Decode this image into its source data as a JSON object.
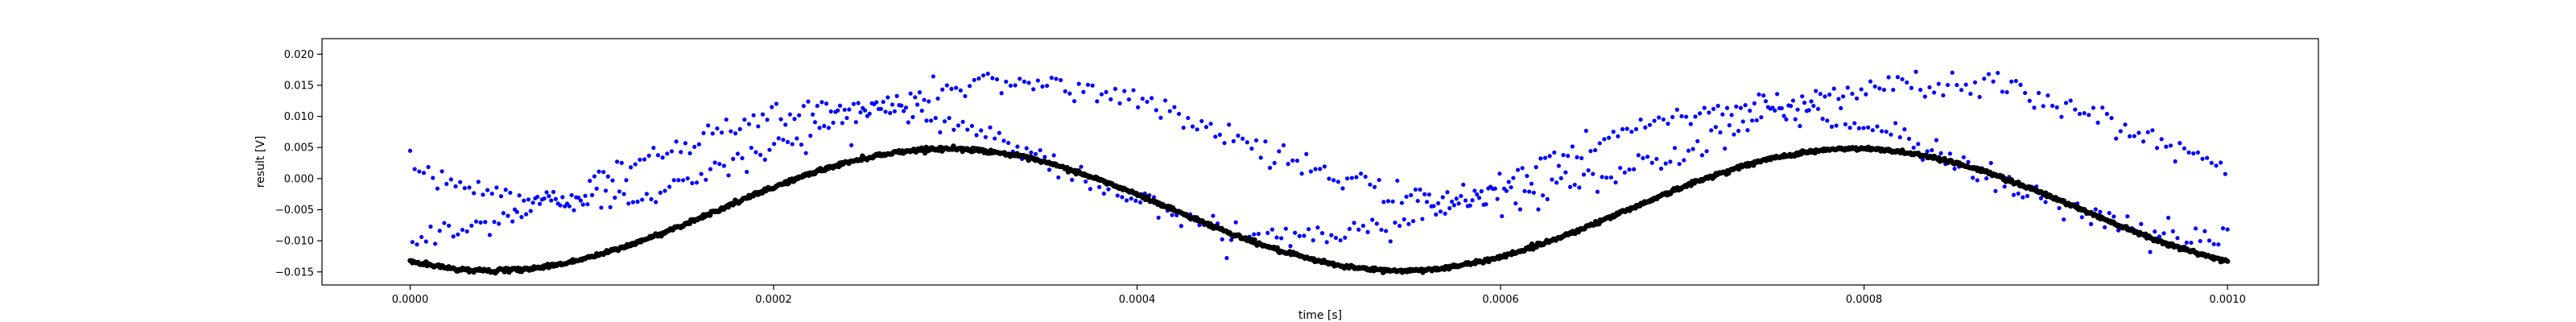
{
  "chart_data": {
    "type": "scatter",
    "title": "",
    "xlabel": "time [s]",
    "ylabel": "result [V]",
    "xlim": [
      -4.85e-05,
      0.00105
    ],
    "ylim": [
      -0.0171,
      0.0225
    ],
    "grid": false,
    "legend": "none",
    "x_ticks": [
      0.0,
      0.0002,
      0.0004,
      0.0006,
      0.0008,
      0.001
    ],
    "x_tick_labels": [
      "0.0000",
      "0.0002",
      "0.0004",
      "0.0006",
      "0.0008",
      "0.0010"
    ],
    "y_ticks": [
      -0.015,
      -0.01,
      -0.005,
      0.0,
      0.005,
      0.01,
      0.015,
      0.02
    ],
    "y_tick_labels": [
      "−0.015",
      "−0.010",
      "−0.005",
      "0.000",
      "0.005",
      "0.010",
      "0.015",
      "0.020"
    ],
    "series": [
      {
        "color": "#0000ff",
        "marker": "dot",
        "x_range": [
          0.0,
          0.001
        ],
        "n_points": 800,
        "model": "two interleaved noisy sinusoids, period 0.0005 s",
        "branch_a": {
          "offset": 0.006,
          "amplitude": 0.0095,
          "phase": 0.42,
          "noise": 0.0011
        },
        "branch_b": {
          "offset": 0.001,
          "amplitude": 0.0105,
          "phase": 0.23,
          "noise": 0.0011
        }
      },
      {
        "color": "#000000",
        "marker": "thick-dot",
        "x_range": [
          0.0,
          0.001
        ],
        "n_points": 1600,
        "model": "sinusoid, period 0.0005 s",
        "offset": -0.005,
        "amplitude": 0.0098,
        "phase": 0.34,
        "noise": 0.00015
      }
    ]
  }
}
